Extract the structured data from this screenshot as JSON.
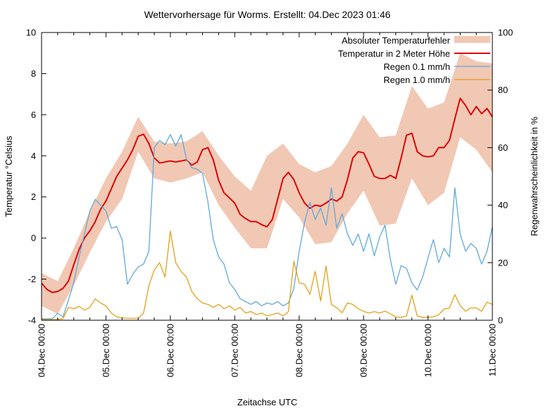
{
  "title": "Wettervorhersage für Worms. Erstellt: 04.Dec 2023 01:46",
  "colors": {
    "band": "#f1c8b4",
    "temperature": "#e00000",
    "rain01": "#5fa8da",
    "rain10": "#e3a017",
    "axis": "#000000",
    "background": "#ffffff"
  },
  "chart_data": {
    "type": "line",
    "title": "Wettervorhersage für Worms. Erstellt: 04.Dec 2023 01:46",
    "xlabel": "Zeitachse UTC",
    "ylabel_left": "Temperatur °Celsius",
    "ylabel_right": "Regenwahrscheinlichkeit in %",
    "grid": false,
    "legend_position": "top-right-inside",
    "x_axis": {
      "unit": "hours",
      "start_hour": 0,
      "end_hour": 168,
      "major_tick_every_h": 24,
      "minor_tick_every_h": 6,
      "tick_labels": [
        "04.Dec 00:00",
        "05.Dec 00:00",
        "06.Dec 00:00",
        "07.Dec 00:00",
        "08.Dec 00:00",
        "09.Dec 00:00",
        "10.Dec 00:00",
        "11.Dec 00:00"
      ]
    },
    "y_left": {
      "label": "Temperatur °Celsius",
      "min": -4,
      "max": 10,
      "ticks": [
        -4,
        -2,
        0,
        2,
        4,
        6,
        8,
        10
      ]
    },
    "y_right": {
      "label": "Regenwahrscheinlichkeit in %",
      "min": 0,
      "max": 100,
      "ticks": [
        0,
        20,
        40,
        60,
        80,
        100
      ]
    },
    "legend": [
      {
        "label": "Absoluter Temperaturfehler",
        "type": "band",
        "color": "#f1c8b4"
      },
      {
        "label": "Temperatur in 2 Meter Höhe",
        "type": "line",
        "color": "#e00000"
      },
      {
        "label": "Regen 0.1 mm/h",
        "type": "line",
        "color": "#5fa8da"
      },
      {
        "label": "Regen 1.0 mm/h",
        "type": "line",
        "color": "#e3a017"
      }
    ],
    "series": {
      "temperature_error_band": {
        "axis": "left",
        "step_h": 6,
        "upper": [
          -1.7,
          -2.1,
          -0.5,
          1.3,
          2.9,
          4.2,
          5.9,
          4.7,
          4.6,
          4.7,
          5.2,
          4.0,
          3.0,
          2.3,
          4.0,
          4.6,
          3.6,
          3.2,
          3.5,
          4.6,
          6.0,
          4.9,
          5.0,
          7.4,
          6.3,
          6.6,
          9.0,
          8.6,
          8.5
        ],
        "lower": [
          -3.3,
          -3.7,
          -2.3,
          -0.7,
          0.8,
          1.9,
          4.2,
          2.9,
          2.7,
          2.9,
          3.2,
          1.6,
          0.5,
          -0.5,
          -0.5,
          1.9,
          1.0,
          -0.3,
          -0.2,
          1.2,
          2.3,
          0.6,
          0.7,
          2.9,
          1.6,
          2.2,
          4.9,
          4.3,
          3.2
        ]
      },
      "temperature_2m": {
        "axis": "left",
        "step_h": 2,
        "values": [
          -2.2,
          -2.5,
          -2.65,
          -2.6,
          -2.45,
          -2.1,
          -1.3,
          -0.55,
          0.0,
          0.35,
          0.8,
          1.4,
          1.8,
          2.4,
          3.0,
          3.4,
          3.8,
          4.3,
          4.95,
          5.05,
          4.6,
          3.9,
          3.65,
          3.7,
          3.75,
          3.7,
          3.75,
          3.8,
          3.55,
          3.7,
          4.3,
          4.4,
          3.8,
          2.8,
          2.2,
          1.95,
          1.7,
          1.15,
          0.95,
          0.8,
          0.8,
          0.65,
          0.55,
          0.9,
          1.9,
          2.9,
          3.2,
          2.85,
          2.2,
          1.7,
          1.45,
          1.6,
          1.55,
          1.7,
          1.9,
          1.8,
          2.0,
          2.85,
          3.9,
          4.2,
          4.15,
          3.6,
          3.0,
          2.9,
          2.9,
          3.05,
          2.9,
          3.9,
          5.0,
          5.1,
          4.2,
          4.0,
          3.95,
          4.0,
          4.4,
          4.4,
          4.75,
          5.8,
          6.8,
          6.45,
          6.0,
          6.4,
          6.05,
          6.3,
          5.9
        ]
      },
      "rain_0_1mm": {
        "axis": "right",
        "step_h": 2,
        "values": [
          0.5,
          0.5,
          0.5,
          2.4,
          1.2,
          7,
          13,
          22,
          30,
          38,
          42,
          40,
          38,
          32,
          32.5,
          28,
          12.5,
          16,
          18.5,
          19.5,
          24,
          60,
          62.5,
          61,
          64.5,
          60.5,
          64.5,
          56,
          53,
          52.5,
          51,
          41,
          28,
          22,
          19.5,
          13,
          10.7,
          7.5,
          6.5,
          5.5,
          6.5,
          5,
          6,
          5.5,
          6.5,
          5,
          6,
          11,
          24,
          34,
          41,
          35,
          39,
          33,
          46,
          32,
          37,
          30,
          26,
          30,
          24,
          30,
          22.4,
          29,
          33,
          21,
          12.5,
          19,
          18,
          13,
          10.5,
          15,
          21.6,
          28,
          20,
          25,
          22,
          46,
          30,
          24,
          26.7,
          25,
          19.5,
          24,
          32.5
        ]
      },
      "rain_1_0mm": {
        "axis": "right",
        "step_h": 2,
        "values": [
          0.2,
          0.2,
          0.2,
          0.3,
          0.5,
          4.5,
          4,
          4.8,
          3.5,
          4.5,
          7.4,
          6,
          5,
          2.5,
          1.2,
          0.8,
          0.7,
          0.7,
          0.7,
          2.5,
          12,
          17.5,
          20,
          15,
          31,
          20,
          17,
          15,
          10,
          7.5,
          6,
          5.5,
          4.5,
          5.5,
          4,
          5,
          3.5,
          4.5,
          2.5,
          3,
          2,
          2.5,
          1.5,
          2,
          2.5,
          1.5,
          3,
          20.5,
          13,
          12.5,
          9,
          17,
          6.7,
          18.8,
          5.5,
          4.3,
          2.6,
          6,
          5.5,
          4,
          3.1,
          2.5,
          3,
          2.5,
          3.2,
          2.2,
          1.2,
          1,
          1.5,
          8.7,
          1.5,
          1,
          1,
          1.2,
          1.9,
          3.9,
          4.2,
          8.9,
          5.1,
          3.1,
          4.3,
          4.3,
          3.1,
          6.3,
          5.5
        ]
      }
    }
  }
}
